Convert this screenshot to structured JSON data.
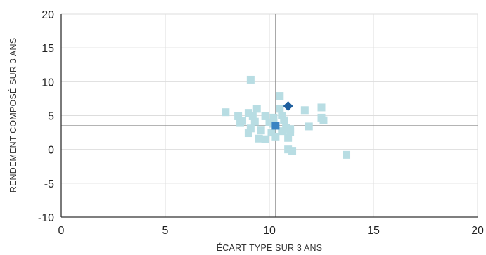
{
  "chart_data": {
    "type": "scatter",
    "title": "",
    "xlabel": "ÉCART TYPE SUR 3 ANS",
    "ylabel": "RENDEMENT COMPOSÉ SUR 3 ANS",
    "xlim": [
      0,
      20
    ],
    "ylim": [
      -10,
      20
    ],
    "xticks": [
      0,
      5,
      10,
      15,
      20
    ],
    "yticks": [
      -10,
      -5,
      0,
      5,
      10,
      15,
      20
    ],
    "grid": true,
    "reference_lines": {
      "x": 10.3,
      "y": 3.5
    },
    "colors": {
      "peers": "#b8dde3",
      "highlight": "#1f5f9e",
      "median": "#3a84c3",
      "grid": "#dddddd",
      "axes": "#333333",
      "reference": "#888888"
    },
    "series": [
      {
        "marker": "square",
        "color": "#b8dde3",
        "points": [
          [
            7.9,
            5.5
          ],
          [
            8.5,
            4.9
          ],
          [
            8.7,
            4.2
          ],
          [
            8.6,
            3.9
          ],
          [
            9.0,
            5.4
          ],
          [
            9.2,
            4.9
          ],
          [
            9.1,
            10.3
          ],
          [
            9.4,
            6.0
          ],
          [
            9.3,
            4.1
          ],
          [
            9.1,
            3.1
          ],
          [
            9.0,
            2.4
          ],
          [
            9.6,
            2.8
          ],
          [
            9.5,
            1.6
          ],
          [
            9.8,
            1.5
          ],
          [
            9.8,
            4.9
          ],
          [
            10.0,
            4.0
          ],
          [
            10.2,
            3.8
          ],
          [
            10.1,
            2.5
          ],
          [
            10.3,
            1.8
          ],
          [
            10.2,
            4.7
          ],
          [
            10.5,
            7.9
          ],
          [
            10.5,
            6.0
          ],
          [
            10.6,
            5.0
          ],
          [
            10.7,
            4.3
          ],
          [
            10.8,
            3.2
          ],
          [
            10.6,
            2.7
          ],
          [
            11.0,
            3.0
          ],
          [
            11.0,
            2.6
          ],
          [
            10.9,
            1.7
          ],
          [
            10.9,
            0.0
          ],
          [
            11.1,
            -0.2
          ],
          [
            11.7,
            5.8
          ],
          [
            11.9,
            3.4
          ],
          [
            12.5,
            6.2
          ],
          [
            12.5,
            4.7
          ],
          [
            12.6,
            4.3
          ],
          [
            13.7,
            -0.8
          ]
        ]
      },
      {
        "marker": "diamond",
        "color": "#1f5f9e",
        "points": [
          [
            10.9,
            6.4
          ]
        ]
      },
      {
        "marker": "square",
        "color": "#3a84c3",
        "points": [
          [
            10.3,
            3.5
          ]
        ]
      }
    ]
  }
}
